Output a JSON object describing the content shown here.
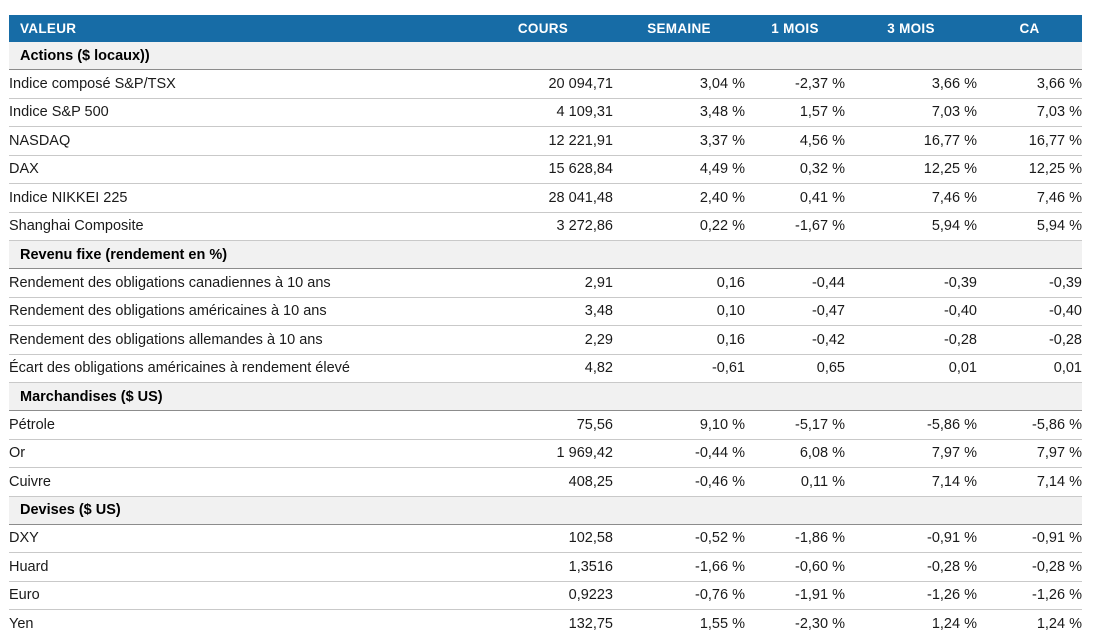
{
  "table": {
    "header": {
      "bg": "#176CA6",
      "text_color": "#FFFFFF",
      "columns": [
        "VALEUR",
        "COURS",
        "SEMAINE",
        "1 MOIS",
        "3 MOIS",
        "CA"
      ]
    },
    "colors": {
      "positive": "#00A05A",
      "negative": "#E02019",
      "section_bg": "#F1F1F1",
      "row_border": "#C9C9C9",
      "section_border": "#8C8C8C"
    },
    "sections": [
      {
        "title": "Actions ($ locaux))",
        "rows": [
          {
            "label": "Indice composé S&P/TSX",
            "cours": "20 094,71",
            "values": [
              {
                "text": "3,04 %",
                "tone": "pos"
              },
              {
                "text": "-2,37 %",
                "tone": "neg"
              },
              {
                "text": "3,66 %",
                "tone": "pos"
              },
              {
                "text": "3,66 %",
                "tone": "pos"
              }
            ]
          },
          {
            "label": "Indice S&P 500",
            "cours": "4 109,31",
            "values": [
              {
                "text": "3,48 %",
                "tone": "pos"
              },
              {
                "text": "1,57 %",
                "tone": "pos"
              },
              {
                "text": "7,03 %",
                "tone": "pos"
              },
              {
                "text": "7,03 %",
                "tone": "pos"
              }
            ]
          },
          {
            "label": "NASDAQ",
            "cours": "12 221,91",
            "values": [
              {
                "text": "3,37 %",
                "tone": "pos"
              },
              {
                "text": "4,56 %",
                "tone": "pos"
              },
              {
                "text": "16,77 %",
                "tone": "pos"
              },
              {
                "text": "16,77 %",
                "tone": "pos"
              }
            ]
          },
          {
            "label": "DAX",
            "cours": "15 628,84",
            "values": [
              {
                "text": "4,49 %",
                "tone": "pos"
              },
              {
                "text": "0,32 %",
                "tone": "pos"
              },
              {
                "text": "12,25 %",
                "tone": "pos"
              },
              {
                "text": "12,25 %",
                "tone": "pos"
              }
            ]
          },
          {
            "label": "Indice NIKKEI 225",
            "cours": "28 041,48",
            "values": [
              {
                "text": "2,40 %",
                "tone": "pos"
              },
              {
                "text": "0,41 %",
                "tone": "pos"
              },
              {
                "text": "7,46 %",
                "tone": "pos"
              },
              {
                "text": "7,46 %",
                "tone": "pos"
              }
            ]
          },
          {
            "label": "Shanghai Composite",
            "cours": "3 272,86",
            "values": [
              {
                "text": "0,22 %",
                "tone": "pos"
              },
              {
                "text": "-1,67 %",
                "tone": "neg"
              },
              {
                "text": "5,94 %",
                "tone": "pos"
              },
              {
                "text": "5,94 %",
                "tone": "pos"
              }
            ]
          }
        ]
      },
      {
        "title": "Revenu fixe (rendement en %)",
        "rows": [
          {
            "label": "Rendement des obligations canadiennes à 10 ans",
            "cours": "2,91",
            "values": [
              {
                "text": "0,16",
                "tone": "neg"
              },
              {
                "text": "-0,44",
                "tone": "pos"
              },
              {
                "text": "-0,39",
                "tone": "pos"
              },
              {
                "text": "-0,39",
                "tone": "pos"
              }
            ]
          },
          {
            "label": "Rendement des obligations américaines à 10 ans",
            "cours": "3,48",
            "values": [
              {
                "text": "0,10",
                "tone": "neg"
              },
              {
                "text": "-0,47",
                "tone": "pos"
              },
              {
                "text": "-0,40",
                "tone": "pos"
              },
              {
                "text": "-0,40",
                "tone": "pos"
              }
            ]
          },
          {
            "label": "Rendement des obligations allemandes à 10 ans",
            "cours": "2,29",
            "values": [
              {
                "text": "0,16",
                "tone": "neg"
              },
              {
                "text": "-0,42",
                "tone": "pos"
              },
              {
                "text": "-0,28",
                "tone": "pos"
              },
              {
                "text": "-0,28",
                "tone": "pos"
              }
            ]
          },
          {
            "label": "Écart des obligations américaines à rendement élevé",
            "cours": "4,82",
            "values": [
              {
                "text": "-0,61",
                "tone": "pos"
              },
              {
                "text": "0,65",
                "tone": "neg"
              },
              {
                "text": "0,01",
                "tone": "neg"
              },
              {
                "text": "0,01",
                "tone": "neg"
              }
            ]
          }
        ]
      },
      {
        "title": "Marchandises ($ US)",
        "rows": [
          {
            "label": "Pétrole",
            "cours": "75,56",
            "values": [
              {
                "text": "9,10 %",
                "tone": "pos"
              },
              {
                "text": "-5,17 %",
                "tone": "neg"
              },
              {
                "text": "-5,86 %",
                "tone": "neg"
              },
              {
                "text": "-5,86 %",
                "tone": "neg"
              }
            ]
          },
          {
            "label": "Or",
            "cours": "1 969,42",
            "values": [
              {
                "text": "-0,44 %",
                "tone": "neg"
              },
              {
                "text": "6,08 %",
                "tone": "pos"
              },
              {
                "text": "7,97 %",
                "tone": "pos"
              },
              {
                "text": "7,97 %",
                "tone": "pos"
              }
            ]
          },
          {
            "label": "Cuivre",
            "cours": "408,25",
            "values": [
              {
                "text": "-0,46 %",
                "tone": "neg"
              },
              {
                "text": "0,11 %",
                "tone": "pos"
              },
              {
                "text": "7,14 %",
                "tone": "pos"
              },
              {
                "text": "7,14 %",
                "tone": "pos"
              }
            ]
          }
        ]
      },
      {
        "title": "Devises ($ US)",
        "rows": [
          {
            "label": "DXY",
            "cours": "102,58",
            "values": [
              {
                "text": "-0,52 %",
                "tone": "neg"
              },
              {
                "text": "-1,86 %",
                "tone": "neg"
              },
              {
                "text": "-0,91 %",
                "tone": "neg"
              },
              {
                "text": "-0,91 %",
                "tone": "neg"
              }
            ]
          },
          {
            "label": "Huard",
            "cours": "1,3516",
            "values": [
              {
                "text": "-1,66 %",
                "tone": "neg"
              },
              {
                "text": "-0,60 %",
                "tone": "neg"
              },
              {
                "text": "-0,28 %",
                "tone": "neg"
              },
              {
                "text": "-0,28 %",
                "tone": "neg"
              }
            ]
          },
          {
            "label": "Euro",
            "cours": "0,9223",
            "values": [
              {
                "text": "-0,76 %",
                "tone": "neg"
              },
              {
                "text": "-1,91 %",
                "tone": "neg"
              },
              {
                "text": "-1,26 %",
                "tone": "neg"
              },
              {
                "text": "-1,26 %",
                "tone": "neg"
              }
            ]
          },
          {
            "label": "Yen",
            "cours": "132,75",
            "values": [
              {
                "text": "1,55 %",
                "tone": "pos"
              },
              {
                "text": "-2,30 %",
                "tone": "neg"
              },
              {
                "text": "1,24 %",
                "tone": "pos"
              },
              {
                "text": "1,24 %",
                "tone": "pos"
              }
            ]
          }
        ]
      }
    ]
  }
}
